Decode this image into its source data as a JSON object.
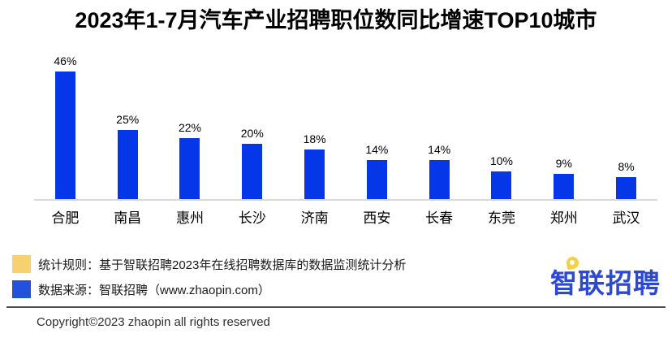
{
  "title": "2023年1-7月汽车产业招聘职位数同比增速TOP10城市",
  "chart_data": {
    "type": "bar",
    "title": "2023年1-7月汽车产业招聘职位数同比增速TOP10城市",
    "categories": [
      "合肥",
      "南昌",
      "惠州",
      "长沙",
      "济南",
      "西安",
      "长春",
      "东莞",
      "郑州",
      "武汉"
    ],
    "values": [
      46,
      25,
      22,
      20,
      18,
      14,
      14,
      10,
      9,
      8
    ],
    "value_labels": [
      "46%",
      "25%",
      "22%",
      "20%",
      "18%",
      "14%",
      "14%",
      "10%",
      "9%",
      "8%"
    ],
    "xlabel": "",
    "ylabel": "",
    "ylim": [
      0,
      50
    ],
    "unit": "%",
    "bar_color": "#0537e8",
    "axis_line_color": "#d9d9d9",
    "grid": false,
    "legend_position": "none"
  },
  "legend": {
    "items": [
      {
        "swatch_color": "#f7d070",
        "label": "统计规则：基于智联招聘2023年在线招聘数据库的数据监测统计分析"
      },
      {
        "swatch_color": "#2450e0",
        "label": "数据来源：智联招聘（www.zhaopin.com）"
      }
    ]
  },
  "logo": {
    "text": "智联招聘"
  },
  "footer": {
    "copyright": "Copyright©2023 zhaopin all rights reserved"
  }
}
